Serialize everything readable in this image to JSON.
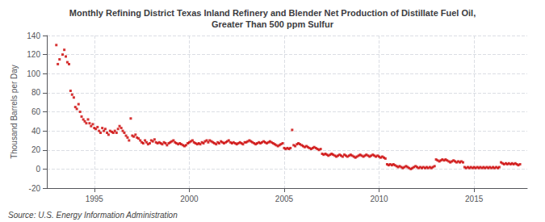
{
  "chart_data": {
    "type": "scatter",
    "title": "Monthly Refining District Texas Inland Refinery and Blender Net Production of Distillate Fuel Oil,\nGreater Than 500 ppm Sulfur",
    "ylabel": "Thousand Barrels per Day",
    "annotations": [
      "Source: U.S. Energy Information Administration"
    ],
    "color": "#cc0000",
    "marker": "square",
    "grid": true,
    "xlim": [
      1992.5,
      2017.8
    ],
    "xticks": [
      1995,
      2000,
      2005,
      2010,
      2015
    ],
    "ylim": [
      -20,
      140
    ],
    "yticks": [
      -20,
      0,
      20,
      40,
      60,
      80,
      100,
      120,
      140
    ],
    "x": [
      1993.0,
      1993.08,
      1993.17,
      1993.33,
      1993.42,
      1993.5,
      1993.58,
      1993.67,
      1993.75,
      1993.83,
      1993.92,
      1994.0,
      1994.08,
      1994.17,
      1994.25,
      1994.33,
      1994.42,
      1994.5,
      1994.58,
      1994.67,
      1994.75,
      1994.83,
      1994.92,
      1995.0,
      1995.08,
      1995.17,
      1995.25,
      1995.33,
      1995.42,
      1995.5,
      1995.58,
      1995.67,
      1995.75,
      1995.83,
      1995.92,
      1996.0,
      1996.08,
      1996.17,
      1996.25,
      1996.33,
      1996.42,
      1996.5,
      1996.58,
      1996.67,
      1996.75,
      1996.83,
      1996.92,
      1997.0,
      1997.08,
      1997.17,
      1997.25,
      1997.33,
      1997.42,
      1997.5,
      1997.58,
      1997.67,
      1997.75,
      1997.83,
      1997.92,
      1998.0,
      1998.08,
      1998.17,
      1998.25,
      1998.33,
      1998.42,
      1998.5,
      1998.58,
      1998.67,
      1998.75,
      1998.83,
      1998.92,
      1999.0,
      1999.08,
      1999.17,
      1999.25,
      1999.33,
      1999.42,
      1999.5,
      1999.58,
      1999.67,
      1999.75,
      1999.83,
      1999.92,
      2000.0,
      2000.08,
      2000.17,
      2000.25,
      2000.33,
      2000.42,
      2000.5,
      2000.58,
      2000.67,
      2000.75,
      2000.83,
      2000.92,
      2001.0,
      2001.08,
      2001.17,
      2001.25,
      2001.33,
      2001.42,
      2001.5,
      2001.58,
      2001.67,
      2001.75,
      2001.83,
      2001.92,
      2002.0,
      2002.08,
      2002.17,
      2002.25,
      2002.33,
      2002.42,
      2002.5,
      2002.58,
      2002.67,
      2002.75,
      2002.83,
      2002.92,
      2003.0,
      2003.08,
      2003.17,
      2003.25,
      2003.33,
      2003.42,
      2003.5,
      2003.58,
      2003.67,
      2003.75,
      2003.83,
      2003.92,
      2004.0,
      2004.08,
      2004.17,
      2004.25,
      2004.33,
      2004.42,
      2004.5,
      2004.58,
      2004.67,
      2004.75,
      2004.83,
      2004.92,
      2005.0,
      2005.08,
      2005.17,
      2005.25,
      2005.33,
      2005.42,
      2005.5,
      2005.58,
      2005.67,
      2005.75,
      2005.83,
      2005.92,
      2006.0,
      2006.08,
      2006.17,
      2006.25,
      2006.33,
      2006.42,
      2006.5,
      2006.58,
      2006.67,
      2006.75,
      2006.83,
      2006.92,
      2007.0,
      2007.08,
      2007.17,
      2007.25,
      2007.33,
      2007.42,
      2007.5,
      2007.58,
      2007.67,
      2007.75,
      2007.83,
      2007.92,
      2008.0,
      2008.08,
      2008.17,
      2008.25,
      2008.33,
      2008.42,
      2008.5,
      2008.58,
      2008.67,
      2008.75,
      2008.83,
      2008.92,
      2009.0,
      2009.08,
      2009.17,
      2009.25,
      2009.33,
      2009.42,
      2009.5,
      2009.58,
      2009.67,
      2009.75,
      2009.83,
      2009.92,
      2010.0,
      2010.08,
      2010.17,
      2010.25,
      2010.33,
      2010.42,
      2010.5,
      2010.58,
      2010.67,
      2010.75,
      2010.83,
      2010.92,
      2011.0,
      2011.08,
      2011.17,
      2011.25,
      2011.33,
      2011.42,
      2011.5,
      2011.58,
      2011.67,
      2011.75,
      2011.83,
      2011.92,
      2012.0,
      2012.08,
      2012.17,
      2012.25,
      2012.33,
      2012.42,
      2012.5,
      2012.58,
      2012.67,
      2012.75,
      2012.83,
      2012.92,
      2013.0,
      2013.08,
      2013.17,
      2013.25,
      2013.33,
      2013.42,
      2013.5,
      2013.58,
      2013.67,
      2013.75,
      2013.83,
      2013.92,
      2014.0,
      2014.08,
      2014.17,
      2014.25,
      2014.33,
      2014.42,
      2014.5,
      2014.58,
      2014.67,
      2014.75,
      2014.83,
      2014.92,
      2015.0,
      2015.08,
      2015.17,
      2015.25,
      2015.33,
      2015.42,
      2015.5,
      2015.58,
      2015.67,
      2015.75,
      2015.83,
      2015.92,
      2016.0,
      2016.08,
      2016.17,
      2016.25,
      2016.33,
      2016.42,
      2016.5,
      2016.58,
      2016.67,
      2016.75,
      2016.83,
      2016.92,
      2017.0,
      2017.08,
      2017.17,
      2017.25,
      2017.33,
      2017.42
    ],
    "values": [
      130,
      110,
      115,
      120,
      125,
      118,
      112,
      110,
      82,
      78,
      75,
      65,
      63,
      68,
      60,
      55,
      52,
      50,
      48,
      52,
      48,
      45,
      47,
      43,
      42,
      44,
      40,
      38,
      43,
      40,
      42,
      38,
      36,
      40,
      39,
      38,
      40,
      38,
      42,
      45,
      43,
      40,
      38,
      35,
      33,
      30,
      53,
      35,
      34,
      36,
      33,
      32,
      30,
      28,
      27,
      30,
      28,
      26,
      27,
      30,
      29,
      31,
      28,
      27,
      28,
      27,
      26,
      28,
      27,
      25,
      27,
      28,
      29,
      30,
      28,
      27,
      26,
      27,
      26,
      25,
      24,
      25,
      27,
      28,
      29,
      30,
      28,
      27,
      26,
      27,
      26,
      28,
      27,
      29,
      30,
      28,
      30,
      29,
      28,
      27,
      26,
      28,
      27,
      29,
      28,
      27,
      28,
      29,
      30,
      28,
      27,
      28,
      27,
      26,
      27,
      28,
      27,
      26,
      28,
      28,
      29,
      30,
      29,
      28,
      27,
      26,
      27,
      28,
      27,
      28,
      29,
      28,
      27,
      28,
      29,
      28,
      27,
      26,
      25,
      24,
      25,
      26,
      27,
      22,
      21,
      22,
      21,
      22,
      41,
      25,
      24,
      26,
      27,
      26,
      25,
      24,
      23,
      24,
      23,
      22,
      21,
      22,
      23,
      22,
      21,
      20,
      21,
      16,
      15,
      16,
      15,
      14,
      15,
      16,
      15,
      14,
      13,
      14,
      15,
      14,
      13,
      15,
      14,
      13,
      14,
      15,
      14,
      13,
      12,
      13,
      14,
      15,
      14,
      13,
      14,
      15,
      14,
      13,
      14,
      15,
      14,
      13,
      14,
      13,
      12,
      13,
      12,
      11,
      5,
      4,
      5,
      4,
      5,
      4,
      3,
      2,
      3,
      2,
      1,
      2,
      3,
      2,
      1,
      0,
      1,
      2,
      3,
      2,
      1,
      2,
      1,
      2,
      1,
      2,
      1,
      2,
      1,
      2,
      3,
      10,
      9,
      8,
      9,
      10,
      9,
      10,
      9,
      8,
      7,
      8,
      9,
      8,
      7,
      8,
      7,
      8,
      7,
      2,
      1,
      2,
      1,
      2,
      1,
      2,
      1,
      2,
      1,
      2,
      1,
      2,
      1,
      2,
      1,
      2,
      1,
      2,
      1,
      2,
      1,
      2,
      7,
      6,
      5,
      6,
      5,
      6,
      5,
      6,
      5,
      6,
      5,
      4,
      5
    ]
  }
}
